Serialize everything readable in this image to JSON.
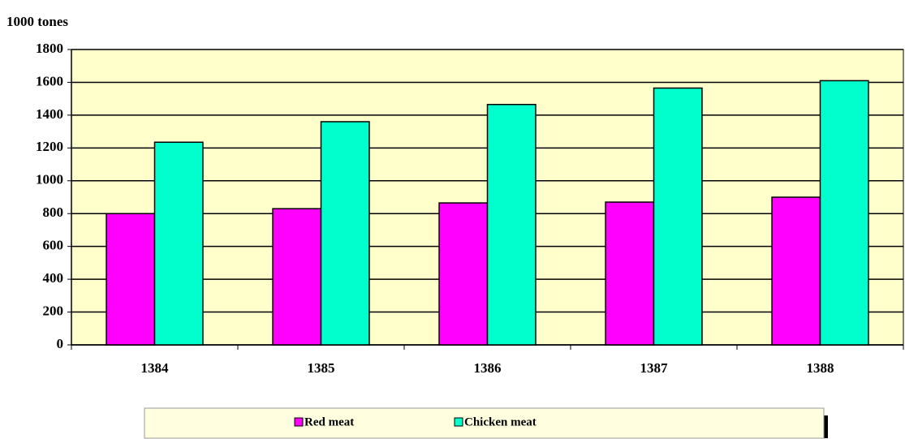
{
  "chart_data": {
    "type": "bar",
    "ylabel": "1000 tones",
    "categories": [
      "1384",
      "1385",
      "1386",
      "1387",
      "1388"
    ],
    "series": [
      {
        "name": "Red meat",
        "color": "#ff00ff",
        "values": [
          800,
          830,
          865,
          870,
          900
        ]
      },
      {
        "name": "Chicken meat",
        "color": "#00ffcc",
        "values": [
          1235,
          1360,
          1465,
          1565,
          1610
        ]
      }
    ],
    "ylim": [
      0,
      1800
    ],
    "yticks": [
      0,
      200,
      400,
      600,
      800,
      1000,
      1200,
      1400,
      1600,
      1800
    ],
    "grid": true,
    "legend": "bottom"
  }
}
